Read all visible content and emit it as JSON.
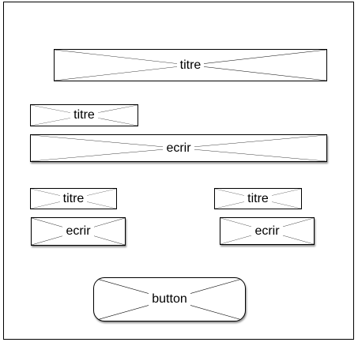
{
  "wireframe": {
    "header_title": "titre",
    "section": {
      "title": "titre",
      "input": "ecrir"
    },
    "left_column": {
      "title": "titre",
      "input": "ecrir"
    },
    "right_column": {
      "title": "titre",
      "input": "ecrir"
    },
    "button_label": "button"
  }
}
